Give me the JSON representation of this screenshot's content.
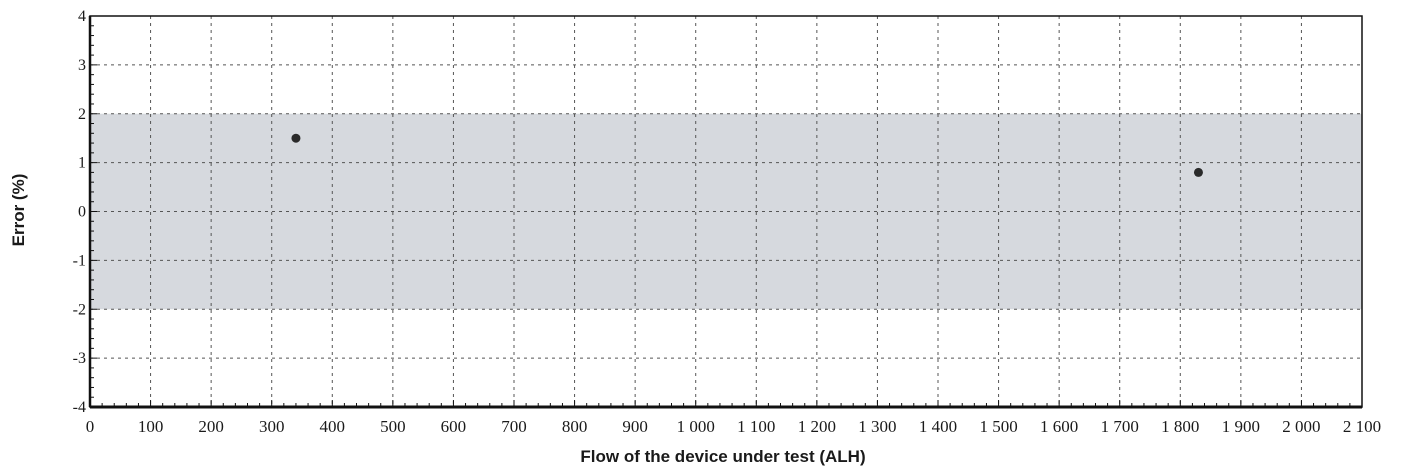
{
  "chart_data": {
    "type": "scatter",
    "title": "",
    "xlabel": "Flow of the device under test (ALH)",
    "ylabel": "Error (%)",
    "xlim": [
      0,
      2100
    ],
    "ylim": [
      -4,
      4
    ],
    "x_ticks": [
      0,
      100,
      200,
      300,
      400,
      500,
      600,
      700,
      800,
      900,
      1000,
      1100,
      1200,
      1300,
      1400,
      1500,
      1600,
      1700,
      1800,
      1900,
      2000,
      2100
    ],
    "x_tick_labels": [
      "0",
      "100",
      "200",
      "300",
      "400",
      "500",
      "600",
      "700",
      "800",
      "900",
      "1 000",
      "1 100",
      "1 200",
      "1 300",
      "1 400",
      "1 500",
      "1 600",
      "1 700",
      "1 800",
      "1 900",
      "2 000",
      "2 100"
    ],
    "y_ticks": [
      -4,
      -3,
      -2,
      -1,
      0,
      1,
      2,
      3,
      4
    ],
    "y_tick_labels": [
      "-4",
      "-3",
      "-2",
      "-1",
      "0",
      "1",
      "2",
      "3",
      "4"
    ],
    "x_minor_step": 20,
    "y_minor_step": 0.2,
    "grid": true,
    "tolerance_band": {
      "lower": -2,
      "upper": 2
    },
    "points": [
      {
        "x": 340,
        "y": 1.5
      },
      {
        "x": 1830,
        "y": 0.8
      }
    ],
    "colors": {
      "band": "#d6d9de",
      "grid": "#555555",
      "axis": "#111111",
      "point": "#2a2a2a"
    }
  }
}
